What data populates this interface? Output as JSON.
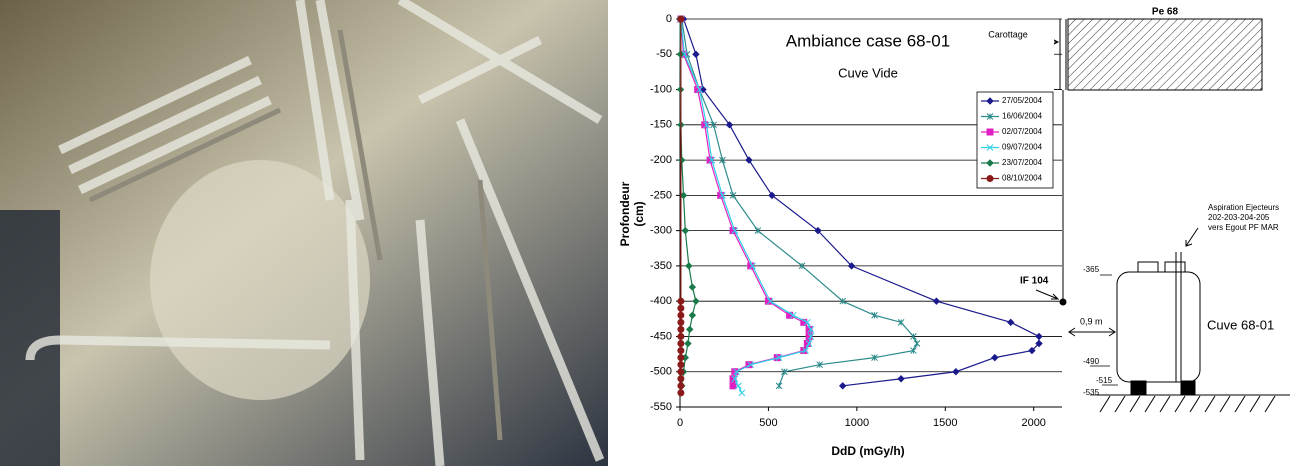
{
  "chart_data": {
    "type": "line",
    "title": "Ambiance case 68-01",
    "subtitle": "Cuve Vide",
    "ylabel": [
      "Profondeur",
      "(cm)"
    ],
    "xlabel": "DdD (mGy/h)",
    "xlim": [
      0,
      2160
    ],
    "xticks": [
      0,
      500,
      1000,
      1500,
      2000
    ],
    "ylim": [
      -550,
      0
    ],
    "yticks": [
      0,
      -50,
      -100,
      -150,
      -200,
      -250,
      -300,
      -350,
      -400,
      -450,
      -500,
      -550
    ],
    "grid": true,
    "legend": "upper right",
    "series": [
      {
        "name": "27/05/2004",
        "color": "#1a1a8c",
        "marker": "diamond",
        "x": [
          20,
          90,
          130,
          280,
          390,
          520,
          780,
          970,
          1450,
          1870,
          2030,
          2030,
          1990,
          1780,
          1560,
          1250,
          920
        ],
        "y": [
          0,
          -50,
          -100,
          -150,
          -200,
          -250,
          -300,
          -350,
          -400,
          -430,
          -450,
          -460,
          -470,
          -480,
          -500,
          -510,
          -520
        ]
      },
      {
        "name": "16/06/2004",
        "color": "#2e8b8b",
        "marker": "star",
        "x": [
          10,
          40,
          110,
          190,
          240,
          300,
          440,
          690,
          920,
          1100,
          1250,
          1320,
          1340,
          1320,
          1100,
          790,
          590,
          560
        ],
        "y": [
          0,
          -50,
          -100,
          -150,
          -200,
          -250,
          -300,
          -350,
          -400,
          -420,
          -430,
          -450,
          -460,
          -470,
          -480,
          -490,
          -500,
          -520
        ]
      },
      {
        "name": "02/07/2004",
        "color": "#e020c0",
        "marker": "square",
        "x": [
          5,
          20,
          100,
          140,
          170,
          230,
          300,
          400,
          500,
          620,
          700,
          730,
          730,
          720,
          700,
          550,
          390,
          310,
          300,
          300
        ],
        "y": [
          0,
          -50,
          -100,
          -150,
          -200,
          -250,
          -300,
          -350,
          -400,
          -420,
          -430,
          -440,
          -450,
          -460,
          -470,
          -480,
          -490,
          -500,
          -510,
          -520
        ]
      },
      {
        "name": "09/07/2004",
        "color": "#30d0e8",
        "marker": "x",
        "x": [
          5,
          25,
          110,
          150,
          180,
          240,
          310,
          410,
          510,
          640,
          720,
          740,
          740,
          730,
          710,
          560,
          400,
          320,
          310,
          330,
          350
        ],
        "y": [
          0,
          -50,
          -100,
          -150,
          -200,
          -250,
          -300,
          -350,
          -400,
          -420,
          -430,
          -440,
          -450,
          -460,
          -470,
          -480,
          -490,
          -500,
          -510,
          -520,
          -530
        ]
      },
      {
        "name": "23/07/2004",
        "color": "#1a7a4a",
        "marker": "diamond",
        "x": [
          0,
          2,
          3,
          5,
          10,
          20,
          30,
          50,
          70,
          90,
          70,
          55,
          45,
          30,
          20,
          10
        ],
        "y": [
          0,
          -50,
          -100,
          -150,
          -200,
          -250,
          -300,
          -350,
          -380,
          -400,
          -420,
          -440,
          -460,
          -480,
          -500,
          -520
        ]
      },
      {
        "name": "08/10/2004",
        "color": "#8b1a1a",
        "marker": "circle",
        "x": [
          5,
          5,
          5,
          5,
          5,
          5,
          5,
          5,
          5,
          5,
          5,
          5,
          5,
          5,
          5
        ],
        "y": [
          0,
          -400,
          -410,
          -420,
          -430,
          -440,
          -450,
          -460,
          -470,
          -480,
          -490,
          -500,
          -510,
          -520,
          -530
        ]
      }
    ],
    "annotations": {
      "carottage": "Carottage",
      "pe": "Pe 68",
      "if": "IF 104",
      "aspiration": [
        "Aspiration Ejecteurs",
        "202-203-204-205",
        "vers Egout PF MAR"
      ],
      "distance": "0,9 m",
      "cuve": "Cuve 68-01",
      "levels": [
        "-365",
        "-490",
        "-515",
        "-535"
      ]
    }
  }
}
